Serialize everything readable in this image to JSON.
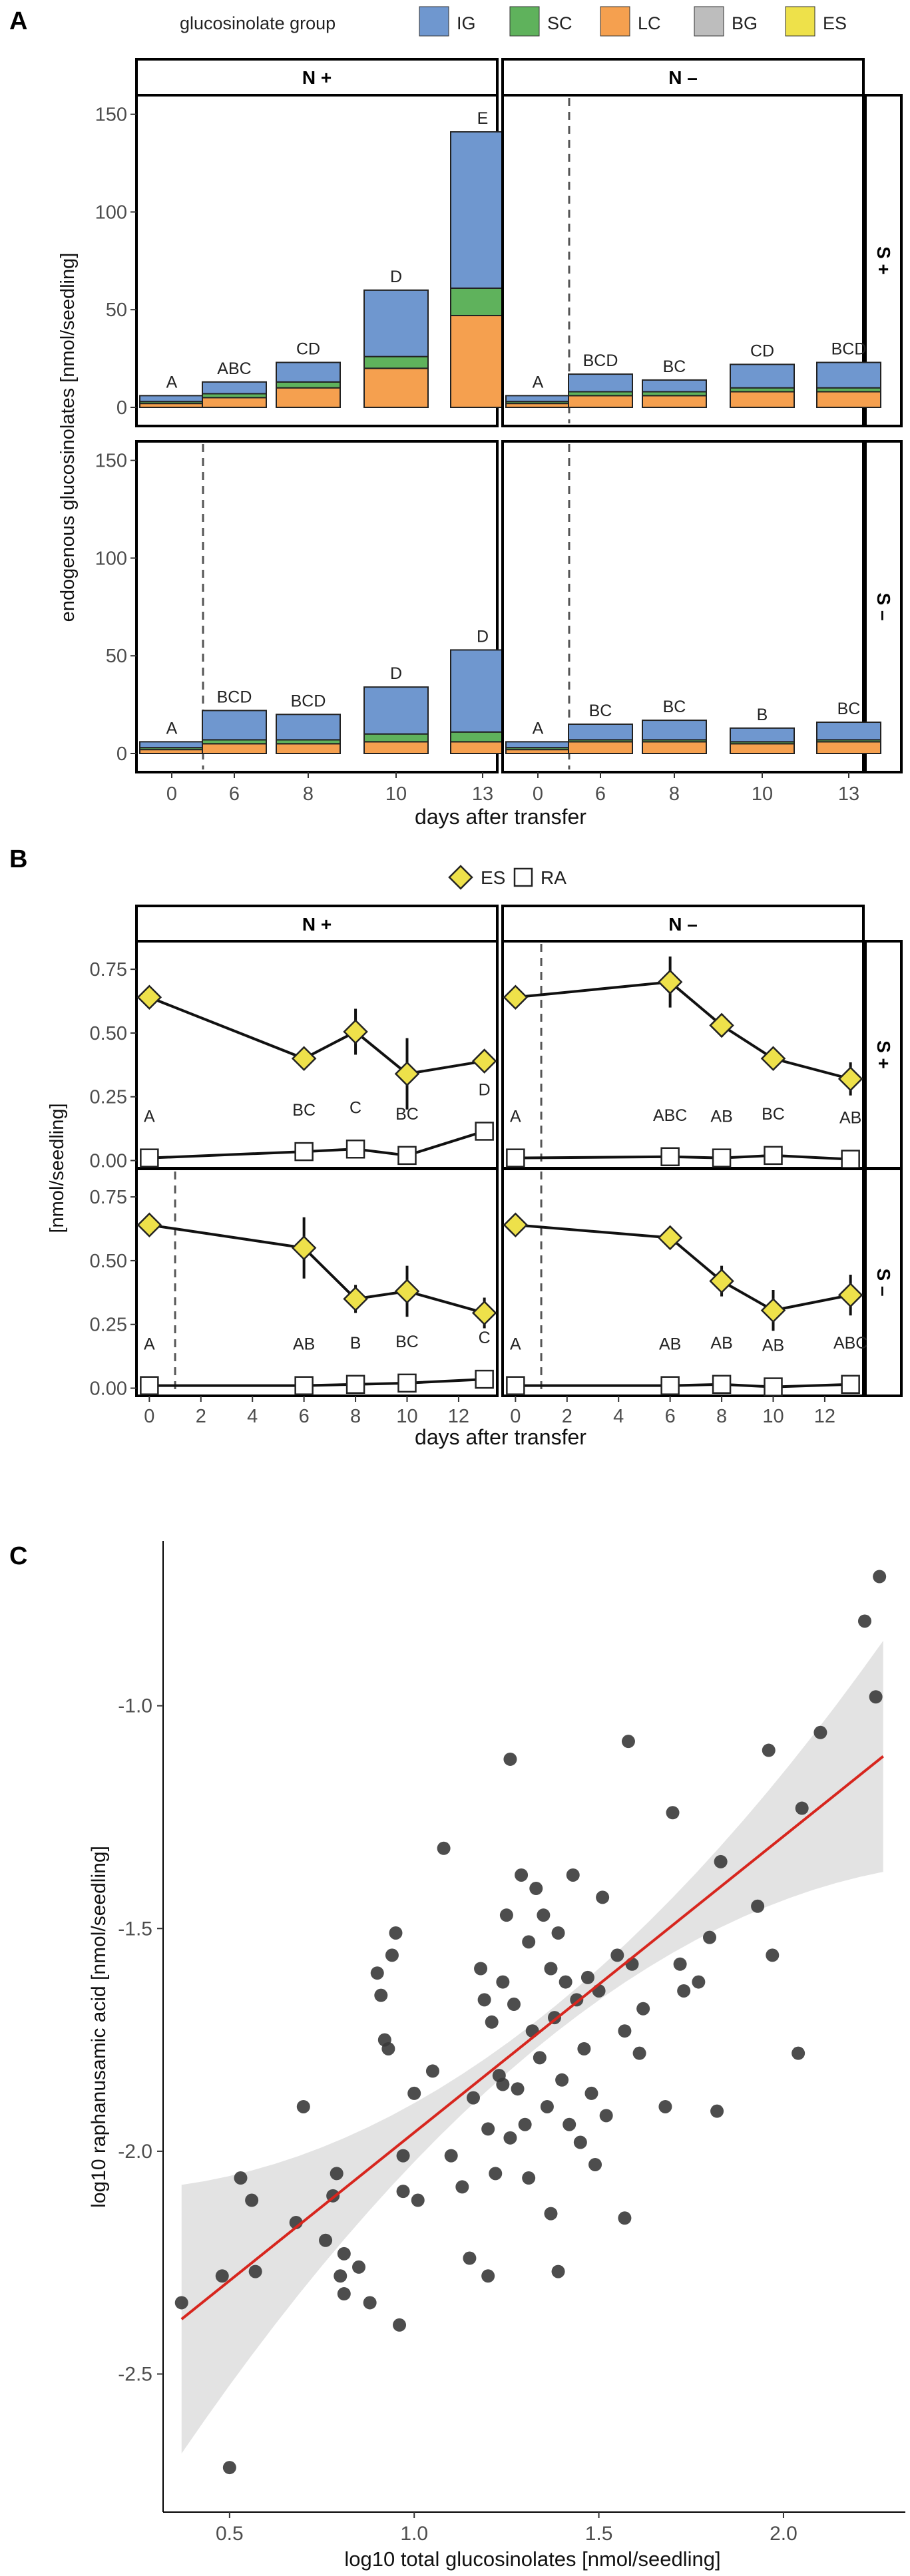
{
  "colors": {
    "IG": "#6f97cf",
    "SC": "#5fb25c",
    "LC": "#f5a04f",
    "BG": "#bdbdbd",
    "ES": "#eee14a",
    "fit_line": "#d7261e",
    "ci_band": "#e3e3e3",
    "points": "#3a3a3a"
  },
  "chart_data": [
    {
      "panel": "A",
      "type": "bar",
      "stacked": true,
      "legend_title": "glucosinolate group",
      "legend": [
        "IG",
        "SC",
        "LC",
        "BG",
        "ES"
      ],
      "ylabel": "endogenous glucosinolates [nmol/seedling]",
      "xlabel": "days after transfer",
      "categories": [
        "0",
        "6",
        "8",
        "10",
        "13"
      ],
      "ylim": [
        0,
        155
      ],
      "yticks": [
        0,
        50,
        100,
        150
      ],
      "facets": [
        {
          "col": "N +",
          "row": "S +",
          "dashed_line": false,
          "series": {
            "LC": [
              2,
              5,
              10,
              20,
              47
            ],
            "SC": [
              1,
              2,
              3,
              6,
              14
            ],
            "IG": [
              3,
              6,
              10,
              34,
              80
            ],
            "BG": [
              0,
              0,
              0,
              0,
              0
            ],
            "ES": [
              0,
              0,
              0,
              0,
              0
            ]
          },
          "letters": [
            "A",
            "ABC",
            "CD",
            "D",
            "E"
          ]
        },
        {
          "col": "N –",
          "row": "S +",
          "dashed_line": true,
          "series": {
            "LC": [
              2,
              6,
              6,
              8,
              8
            ],
            "SC": [
              1,
              2,
              2,
              2,
              2
            ],
            "IG": [
              3,
              9,
              6,
              12,
              13
            ],
            "BG": [
              0,
              0,
              0,
              0,
              0
            ],
            "ES": [
              0,
              0,
              0,
              0,
              0
            ]
          },
          "letters": [
            "A",
            "BCD",
            "BC",
            "CD",
            "BCD"
          ]
        },
        {
          "col": "N +",
          "row": "S –",
          "dashed_line": true,
          "series": {
            "LC": [
              2,
              5,
              5,
              6,
              6
            ],
            "SC": [
              1,
              2,
              2,
              4,
              5
            ],
            "IG": [
              3,
              15,
              13,
              24,
              42
            ],
            "BG": [
              0,
              0,
              0,
              0,
              0
            ],
            "ES": [
              0,
              0,
              0,
              0,
              0
            ]
          },
          "letters": [
            "A",
            "BCD",
            "BCD",
            "D",
            "D"
          ]
        },
        {
          "col": "N –",
          "row": "S –",
          "dashed_line": true,
          "series": {
            "LC": [
              2,
              6,
              6,
              5,
              6
            ],
            "SC": [
              1,
              1,
              1,
              1,
              1
            ],
            "IG": [
              3,
              8,
              10,
              7,
              9
            ],
            "BG": [
              0,
              0,
              0,
              0,
              0
            ],
            "ES": [
              0,
              0,
              0,
              0,
              0
            ]
          },
          "letters": [
            "A",
            "BC",
            "BC",
            "B",
            "BC"
          ]
        }
      ]
    },
    {
      "panel": "B",
      "type": "line",
      "legend": [
        "ES",
        "RA"
      ],
      "ylabel": "[nmol/seedling]",
      "xlabel": "days after transfer",
      "xlim": [
        -0.5,
        13.5
      ],
      "xticks": [
        0,
        2,
        4,
        6,
        8,
        10,
        12
      ],
      "ylim": [
        -0.03,
        0.86
      ],
      "yticks": [
        0.0,
        0.25,
        0.5,
        0.75
      ],
      "ytick_labels": [
        "0.00",
        "0.25",
        "0.50",
        "0.75"
      ],
      "x": [
        0,
        6,
        8,
        10,
        13
      ],
      "facets": [
        {
          "col": "N +",
          "row": "S +",
          "dashed_line": false,
          "ES": [
            0.64,
            0.4,
            0.505,
            0.34,
            0.39
          ],
          "ES_err": [
            0.03,
            0.02,
            0.09,
            0.14,
            0.04
          ],
          "RA": [
            0.01,
            0.035,
            0.045,
            0.02,
            0.115
          ],
          "letters": [
            "A",
            "BC",
            "C",
            "BC",
            "D"
          ]
        },
        {
          "col": "N –",
          "row": "S +",
          "dashed_line": true,
          "ES": [
            0.64,
            0.7,
            0.53,
            0.4,
            0.32
          ],
          "ES_err": [
            0.035,
            0.1,
            0.045,
            0.02,
            0.065
          ],
          "RA": [
            0.01,
            0.015,
            0.01,
            0.02,
            0.005
          ],
          "letters": [
            "A",
            "ABC",
            "AB",
            "BC",
            "AB"
          ]
        },
        {
          "col": "N +",
          "row": "S –",
          "dashed_line": true,
          "ES": [
            0.64,
            0.55,
            0.35,
            0.38,
            0.295
          ],
          "ES_err": [
            0.04,
            0.12,
            0.055,
            0.1,
            0.06
          ],
          "RA": [
            0.01,
            0.01,
            0.015,
            0.02,
            0.035
          ],
          "letters": [
            "A",
            "AB",
            "B",
            "BC",
            "C"
          ]
        },
        {
          "col": "N –",
          "row": "S –",
          "dashed_line": true,
          "ES": [
            0.64,
            0.59,
            0.42,
            0.305,
            0.365
          ],
          "ES_err": [
            0.035,
            0.02,
            0.06,
            0.08,
            0.08
          ],
          "RA": [
            0.01,
            0.01,
            0.015,
            0.005,
            0.015
          ],
          "letters": [
            "A",
            "AB",
            "AB",
            "AB",
            "ABC"
          ]
        }
      ]
    },
    {
      "panel": "C",
      "type": "scatter",
      "xlabel": "log10 total glucosinolates [nmol/seedling]",
      "ylabel": "log10 raphanusamic acid [nmol/seedling]",
      "xlim": [
        0.32,
        2.33
      ],
      "ylim": [
        -2.81,
        -0.63
      ],
      "xticks": [
        0.5,
        1.0,
        1.5,
        2.0
      ],
      "xtick_labels": [
        "0.5",
        "1.0",
        "1.5",
        "2.0"
      ],
      "yticks": [
        -2.5,
        -2.0,
        -1.5,
        -1.0
      ],
      "ytick_labels": [
        "-2.5",
        "-2.0",
        "-1.5",
        "-1.0"
      ],
      "fit": {
        "slope": 0.665,
        "intercept": -2.623,
        "x_range": [
          0.37,
          2.27
        ]
      },
      "points": [
        [
          0.37,
          -2.34
        ],
        [
          0.48,
          -2.28
        ],
        [
          0.5,
          -2.71
        ],
        [
          0.53,
          -2.06
        ],
        [
          0.56,
          -2.11
        ],
        [
          0.57,
          -2.27
        ],
        [
          0.68,
          -2.16
        ],
        [
          0.7,
          -1.9
        ],
        [
          0.76,
          -2.2
        ],
        [
          0.78,
          -2.1
        ],
        [
          0.79,
          -2.05
        ],
        [
          0.8,
          -2.28
        ],
        [
          0.81,
          -2.23
        ],
        [
          0.81,
          -2.32
        ],
        [
          0.85,
          -2.26
        ],
        [
          0.88,
          -2.34
        ],
        [
          0.9,
          -1.6
        ],
        [
          0.91,
          -1.65
        ],
        [
          0.92,
          -1.75
        ],
        [
          0.93,
          -1.77
        ],
        [
          0.94,
          -1.56
        ],
        [
          0.95,
          -1.51
        ],
        [
          0.96,
          -2.39
        ],
        [
          0.97,
          -2.01
        ],
        [
          0.97,
          -2.09
        ],
        [
          1.0,
          -1.87
        ],
        [
          1.01,
          -2.11
        ],
        [
          1.05,
          -1.82
        ],
        [
          1.08,
          -1.32
        ],
        [
          1.1,
          -2.01
        ],
        [
          1.13,
          -2.08
        ],
        [
          1.15,
          -2.24
        ],
        [
          1.16,
          -1.88
        ],
        [
          1.18,
          -1.59
        ],
        [
          1.19,
          -1.66
        ],
        [
          1.2,
          -1.95
        ],
        [
          1.21,
          -1.71
        ],
        [
          1.2,
          -2.28
        ],
        [
          1.22,
          -2.05
        ],
        [
          1.23,
          -1.83
        ],
        [
          1.24,
          -1.62
        ],
        [
          1.24,
          -1.85
        ],
        [
          1.25,
          -1.47
        ],
        [
          1.26,
          -1.97
        ],
        [
          1.26,
          -1.12
        ],
        [
          1.27,
          -1.67
        ],
        [
          1.28,
          -1.86
        ],
        [
          1.29,
          -1.38
        ],
        [
          1.3,
          -1.94
        ],
        [
          1.31,
          -1.53
        ],
        [
          1.31,
          -2.06
        ],
        [
          1.32,
          -1.73
        ],
        [
          1.33,
          -1.41
        ],
        [
          1.34,
          -1.79
        ],
        [
          1.35,
          -1.47
        ],
        [
          1.36,
          -1.9
        ],
        [
          1.37,
          -1.59
        ],
        [
          1.37,
          -2.14
        ],
        [
          1.38,
          -1.7
        ],
        [
          1.39,
          -1.51
        ],
        [
          1.39,
          -2.27
        ],
        [
          1.4,
          -1.84
        ],
        [
          1.41,
          -1.62
        ],
        [
          1.42,
          -1.94
        ],
        [
          1.43,
          -1.38
        ],
        [
          1.44,
          -1.66
        ],
        [
          1.45,
          -1.98
        ],
        [
          1.46,
          -1.77
        ],
        [
          1.47,
          -1.61
        ],
        [
          1.48,
          -1.87
        ],
        [
          1.49,
          -2.03
        ],
        [
          1.5,
          -1.64
        ],
        [
          1.51,
          -1.43
        ],
        [
          1.52,
          -1.92
        ],
        [
          1.55,
          -1.56
        ],
        [
          1.57,
          -2.15
        ],
        [
          1.57,
          -1.73
        ],
        [
          1.58,
          -1.08
        ],
        [
          1.59,
          -1.58
        ],
        [
          1.61,
          -1.78
        ],
        [
          1.62,
          -1.68
        ],
        [
          1.68,
          -1.9
        ],
        [
          1.7,
          -1.24
        ],
        [
          1.72,
          -1.58
        ],
        [
          1.73,
          -1.64
        ],
        [
          1.77,
          -1.62
        ],
        [
          1.8,
          -1.52
        ],
        [
          1.82,
          -1.91
        ],
        [
          1.83,
          -1.35
        ],
        [
          1.93,
          -1.45
        ],
        [
          1.96,
          -1.1
        ],
        [
          1.97,
          -1.56
        ],
        [
          2.04,
          -1.78
        ],
        [
          2.05,
          -1.23
        ],
        [
          2.1,
          -1.06
        ],
        [
          2.22,
          -0.81
        ],
        [
          2.25,
          -0.98
        ],
        [
          2.26,
          -0.71
        ]
      ]
    }
  ],
  "figure_labels": {
    "A": "A",
    "B": "B",
    "C": "C"
  }
}
